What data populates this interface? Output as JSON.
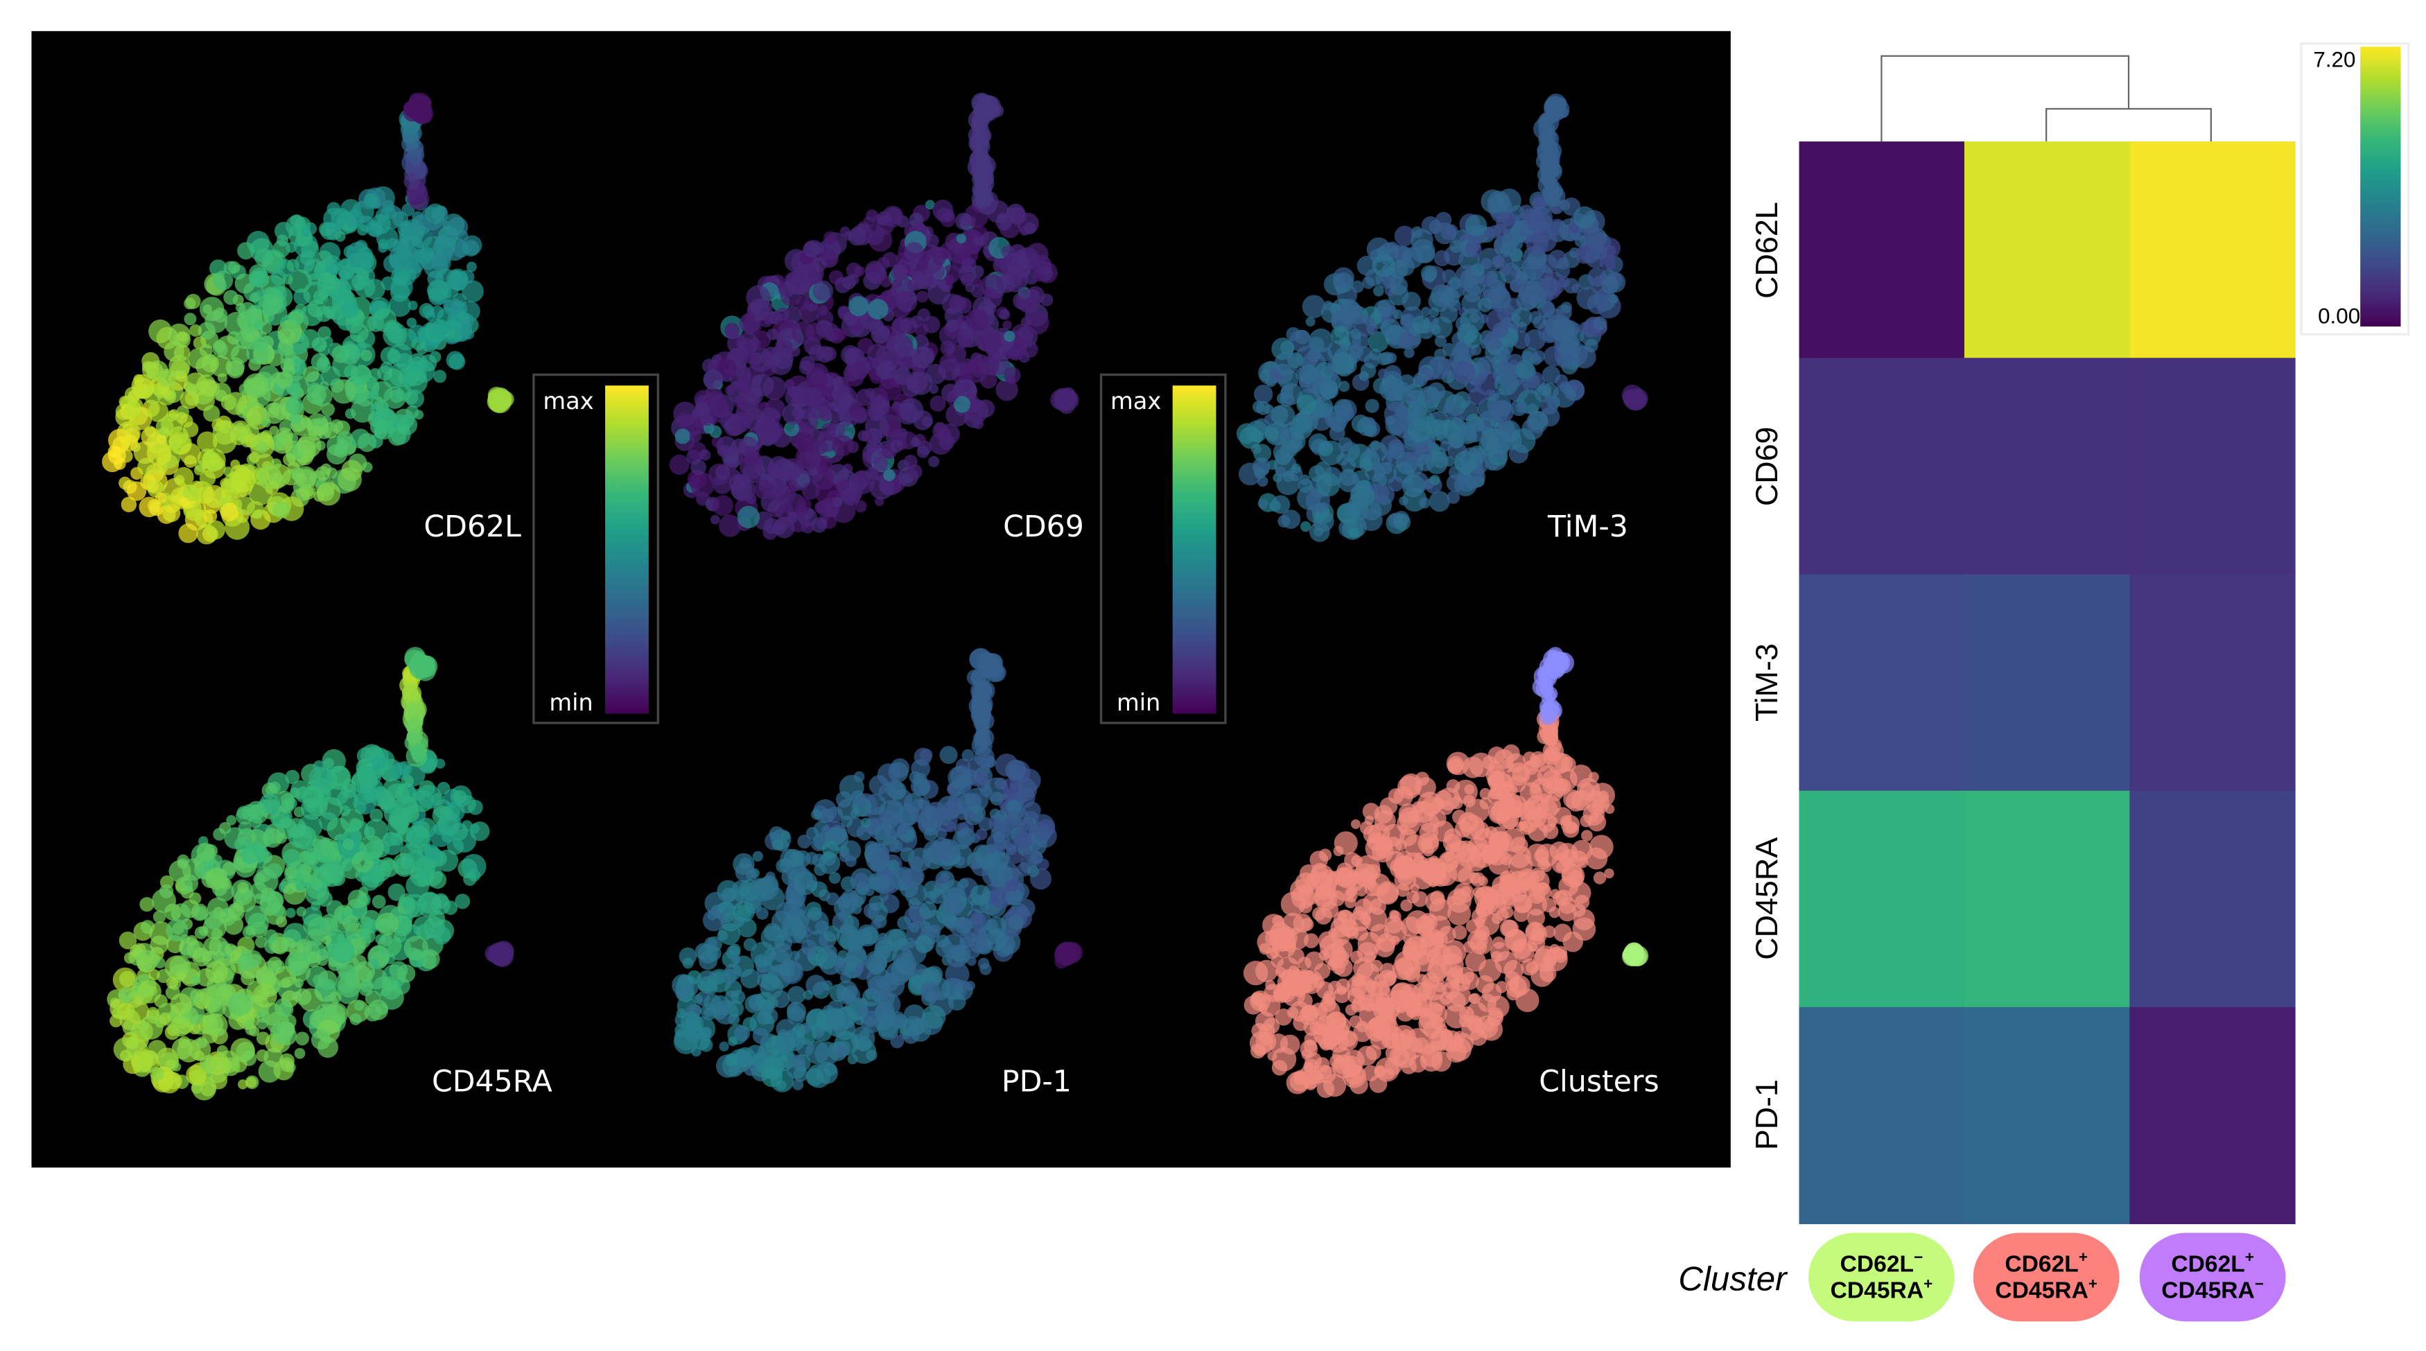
{
  "panels": [
    {
      "label": "CD62L"
    },
    {
      "label": "CD69"
    },
    {
      "label": "TiM-3"
    },
    {
      "label": "CD45RA"
    },
    {
      "label": "PD-1"
    },
    {
      "label": "Clusters"
    }
  ],
  "panel_colorbar": {
    "max_label": "max",
    "min_label": "min"
  },
  "chart_data": {
    "type": "heatmap",
    "rows": [
      "CD62L",
      "CD69",
      "TiM-3",
      "CD45RA",
      "PD-1"
    ],
    "columns": [
      "CD62L⁻ CD45RA⁺",
      "CD62L⁺ CD45RA⁺",
      "CD62L⁺ CD45RA⁻"
    ],
    "values": [
      [
        0.3,
        6.8,
        7.1
      ],
      [
        1.0,
        1.0,
        1.0
      ],
      [
        1.6,
        1.7,
        1.1
      ],
      [
        4.6,
        4.7,
        1.4
      ],
      [
        2.3,
        2.4,
        0.6
      ]
    ],
    "colorscale": "viridis",
    "range": [
      0.0,
      7.2
    ],
    "legend": {
      "max_label": "7.20",
      "min_label": "0.00",
      "placement": "top-right"
    },
    "dendrogram": "columns: (col1, (col2, col3))",
    "cluster_axis_label": "Cluster",
    "cluster_pills": [
      {
        "line1": "CD62L",
        "sup1": "−",
        "line2": "CD45RA",
        "sup2": "+",
        "color": "#c4fb7c"
      },
      {
        "line1": "CD62L",
        "sup1": "+",
        "line2": "CD45RA",
        "sup2": "+",
        "color": "#fd827e"
      },
      {
        "line1": "CD62L",
        "sup1": "+",
        "line2": "CD45RA",
        "sup2": "−",
        "color": "#c07cfb"
      }
    ]
  },
  "colors": {
    "cluster_main": "#f08a80",
    "cluster_tail": "#8a8cff",
    "cluster_island": "#a8f27c",
    "background": "#000000"
  }
}
